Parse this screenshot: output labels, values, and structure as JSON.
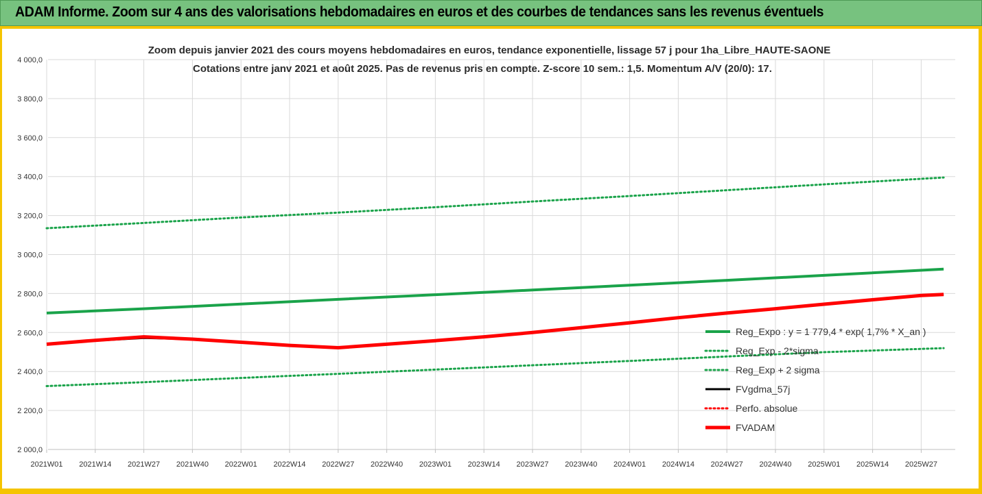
{
  "banner": {
    "title": "ADAM Informe. Zoom sur 4 ans des valorisations hebdomadaires en euros et des courbes de tendances sans les revenus éventuels"
  },
  "colors": {
    "banner_bg": "#77c27f",
    "frame": "#f5c400",
    "green": "#1aa34a",
    "black": "#000000",
    "red": "#ff0000",
    "grid": "#d9d9d9"
  },
  "chart_data": {
    "type": "line",
    "title_lines": [
      "Zoom depuis janvier 2021 des cours moyens hebdomadaires en euros, tendance exponentielle, lissage 57 j pour 1ha_Libre_HAUTE-SAONE",
      "Cotations entre janv 2021 et août 2025.  Pas de revenus pris en compte. Z-score 10 sem.: 1,5. Momentum A/V (20/0): 17."
    ],
    "ylim": [
      2000,
      4000
    ],
    "y_ticks": [
      "2 000,0",
      "2 200,0",
      "2 400,0",
      "2 600,0",
      "2 800,0",
      "3 000,0",
      "3 200,0",
      "3 400,0",
      "3 600,0",
      "3 800,0",
      "4 000,0"
    ],
    "grid": true,
    "x_ticks": [
      "2021W01",
      "2021W14",
      "2021W27",
      "2021W40",
      "2022W01",
      "2022W14",
      "2022W27",
      "2022W40",
      "2023W01",
      "2023W14",
      "2023W27",
      "2023W40",
      "2024W01",
      "2024W14",
      "2024W27",
      "2024W40",
      "2025W01",
      "2025W14",
      "2025W27"
    ],
    "legend_position": "right",
    "series": [
      {
        "name": "Reg_Expo : y = 1 779,4 * exp( 1,7% *  X_an )",
        "style": "solid",
        "color": "#1aa34a",
        "x": [
          "2021W01",
          "2021W27",
          "2022W01",
          "2022W27",
          "2023W01",
          "2023W27",
          "2024W01",
          "2024W27",
          "2025W01",
          "2025W33"
        ],
        "y": [
          2700,
          2722,
          2746,
          2770,
          2794,
          2818,
          2843,
          2868,
          2893,
          2925
        ]
      },
      {
        "name": "Reg_Exp - 2*sigma",
        "style": "dotted",
        "color": "#1aa34a",
        "x": [
          "2021W01",
          "2021W27",
          "2022W01",
          "2022W27",
          "2023W01",
          "2023W27",
          "2024W01",
          "2024W27",
          "2025W01",
          "2025W33"
        ],
        "y": [
          2325,
          2345,
          2367,
          2388,
          2410,
          2432,
          2454,
          2477,
          2499,
          2520
        ]
      },
      {
        "name": "Reg_Exp + 2 sigma",
        "style": "dotted",
        "color": "#1aa34a",
        "x": [
          "2021W01",
          "2021W27",
          "2022W01",
          "2022W27",
          "2023W01",
          "2023W27",
          "2024W01",
          "2024W27",
          "2025W01",
          "2025W33"
        ],
        "y": [
          3135,
          3162,
          3190,
          3215,
          3243,
          3272,
          3300,
          3330,
          3360,
          3395
        ]
      },
      {
        "name": "FVgdma_57j",
        "style": "solid-thin",
        "color": "#000000",
        "x": [
          "2021W01",
          "2021W14",
          "2021W27",
          "2021W40",
          "2022W01",
          "2022W14",
          "2022W27",
          "2022W40",
          "2023W01",
          "2023W14",
          "2023W27",
          "2023W40",
          "2024W01",
          "2024W14",
          "2024W27",
          "2024W40",
          "2025W01",
          "2025W14",
          "2025W27",
          "2025W33"
        ],
        "y": [
          2540,
          2558,
          2572,
          2566,
          2550,
          2534,
          2524,
          2540,
          2558,
          2578,
          2600,
          2625,
          2650,
          2676,
          2700,
          2722,
          2745,
          2768,
          2790,
          2795
        ]
      },
      {
        "name": "Perfo. absolue",
        "style": "dotted",
        "color": "#ff0000",
        "x": [],
        "y": []
      },
      {
        "name": "FVADAM",
        "style": "solid-thick",
        "color": "#ff0000",
        "x": [
          "2021W01",
          "2021W14",
          "2021W27",
          "2021W40",
          "2022W01",
          "2022W14",
          "2022W27",
          "2022W40",
          "2023W01",
          "2023W14",
          "2023W27",
          "2023W40",
          "2024W01",
          "2024W14",
          "2024W27",
          "2024W40",
          "2025W01",
          "2025W14",
          "2025W27",
          "2025W33"
        ],
        "y": [
          2540,
          2560,
          2578,
          2566,
          2550,
          2534,
          2522,
          2540,
          2558,
          2578,
          2600,
          2625,
          2650,
          2676,
          2700,
          2722,
          2745,
          2768,
          2790,
          2795
        ]
      }
    ]
  }
}
